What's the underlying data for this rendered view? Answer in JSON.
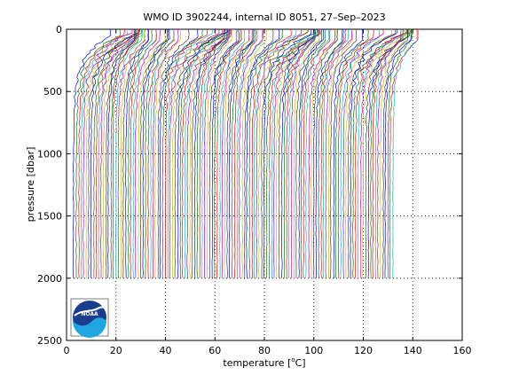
{
  "chart_data": {
    "type": "line",
    "title": "WMO ID 3902244, internal ID 8051, 27–Sep–2023",
    "xlabel_prefix": "temperature [",
    "xlabel_sup": "o",
    "xlabel_suffix": "C]",
    "ylabel": "pressure [dbar]",
    "xlim": [
      0,
      160
    ],
    "ylim": [
      0,
      2500
    ],
    "y_reversed": true,
    "grid": true,
    "x_ticks": [
      0,
      20,
      40,
      60,
      80,
      100,
      120,
      140,
      160
    ],
    "y_ticks": [
      0,
      500,
      1000,
      1500,
      2000,
      2500
    ],
    "profile_offset_step": 1,
    "profile_count": 130,
    "profile_max_pressure": 2000,
    "series_colors": [
      "#0000ff",
      "#008000",
      "#ff0000",
      "#00bfbf",
      "#bf00bf",
      "#bfbf00",
      "#404040"
    ],
    "logo": {
      "text": "NOAA"
    }
  }
}
